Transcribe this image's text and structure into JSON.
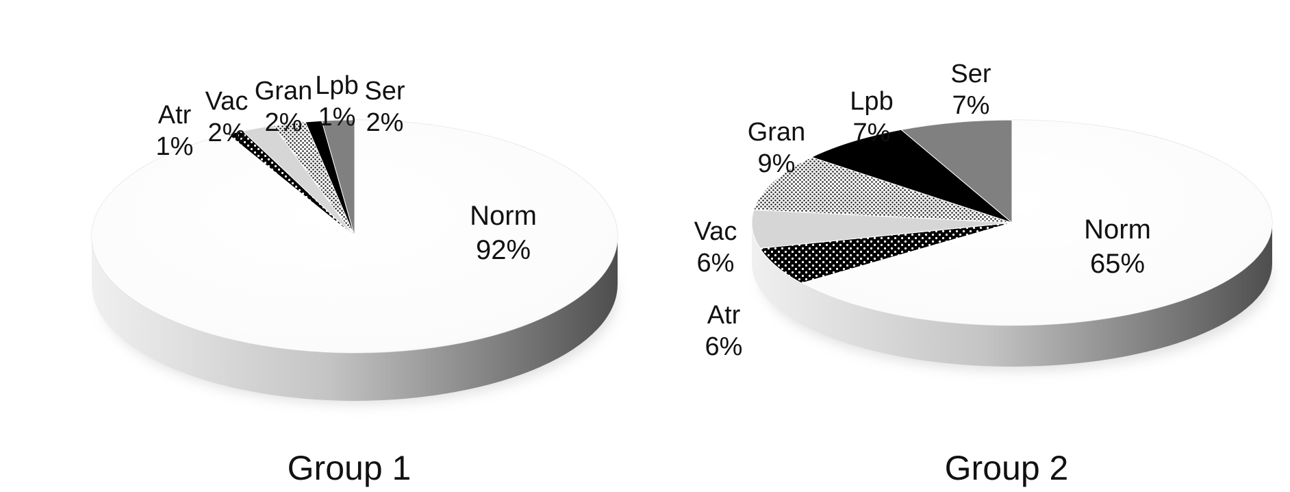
{
  "chart_data": [
    {
      "type": "pie",
      "title": "Group 1",
      "slices": [
        {
          "label": "Norm",
          "value": 92,
          "value_text": "92%",
          "pattern": "white"
        },
        {
          "label": "Atr",
          "value": 1,
          "value_text": "1%",
          "pattern": "dots-on-black"
        },
        {
          "label": "Vac",
          "value": 2,
          "value_text": "2%",
          "pattern": "light-gray"
        },
        {
          "label": "Gran",
          "value": 2,
          "value_text": "2%",
          "pattern": "fine-dots"
        },
        {
          "label": "Lpb",
          "value": 1,
          "value_text": "1%",
          "pattern": "black"
        },
        {
          "label": "Ser",
          "value": 2,
          "value_text": "2%",
          "pattern": "gray"
        }
      ]
    },
    {
      "type": "pie",
      "title": "Group 2",
      "slices": [
        {
          "label": "Norm",
          "value": 65,
          "value_text": "65%",
          "pattern": "white"
        },
        {
          "label": "Atr",
          "value": 6,
          "value_text": "6%",
          "pattern": "dots-on-black"
        },
        {
          "label": "Vac",
          "value": 6,
          "value_text": "6%",
          "pattern": "light-gray"
        },
        {
          "label": "Gran",
          "value": 9,
          "value_text": "9%",
          "pattern": "fine-dots"
        },
        {
          "label": "Lpb",
          "value": 7,
          "value_text": "7%",
          "pattern": "black"
        },
        {
          "label": "Ser",
          "value": 7,
          "value_text": "7%",
          "pattern": "gray"
        }
      ]
    }
  ],
  "colors": {
    "white": "#ffffff",
    "light-gray": "#d6d6d6",
    "gray": "#808080",
    "black": "#000000",
    "side-light": "#e8e8e8",
    "side-dark": "#5a5a5a"
  }
}
